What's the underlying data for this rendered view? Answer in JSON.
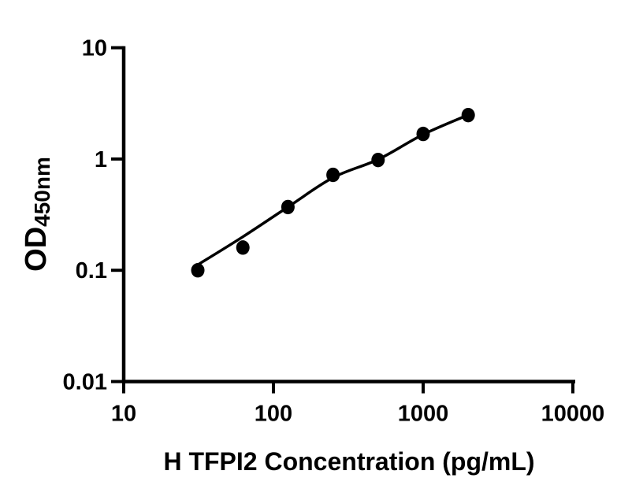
{
  "chart": {
    "x_title": "H TFPI2 Concentration (pg/mL)",
    "y_label_main": "OD",
    "y_label_sub": "450nm"
  },
  "chart_data": {
    "type": "scatter",
    "title": "",
    "xlabel": "H TFPI2 Concentration (pg/mL)",
    "ylabel": "OD450nm",
    "x_scale": "log",
    "y_scale": "log",
    "xlim": [
      10,
      10000
    ],
    "ylim": [
      0.01,
      10
    ],
    "x_ticks": [
      "10",
      "100",
      "1000",
      "10000"
    ],
    "y_ticks": [
      "10",
      "1",
      "0.1",
      "0.01"
    ],
    "grid": false,
    "legend": "none",
    "marker": "filled-black-circle",
    "points": [
      {
        "x": 31.25,
        "y": 0.1
      },
      {
        "x": 62.5,
        "y": 0.16
      },
      {
        "x": 125,
        "y": 0.37
      },
      {
        "x": 250,
        "y": 0.72
      },
      {
        "x": 500,
        "y": 0.98
      },
      {
        "x": 1000,
        "y": 1.68
      },
      {
        "x": 2000,
        "y": 2.48
      }
    ],
    "fit_curve": [
      {
        "x": 31.25,
        "y": 0.112
      },
      {
        "x": 62.5,
        "y": 0.2
      },
      {
        "x": 125,
        "y": 0.37
      },
      {
        "x": 250,
        "y": 0.68
      },
      {
        "x": 500,
        "y": 0.99
      },
      {
        "x": 1000,
        "y": 1.66
      },
      {
        "x": 2000,
        "y": 2.49
      }
    ],
    "colors": {
      "foreground": "#000000",
      "background": "#ffffff"
    }
  }
}
